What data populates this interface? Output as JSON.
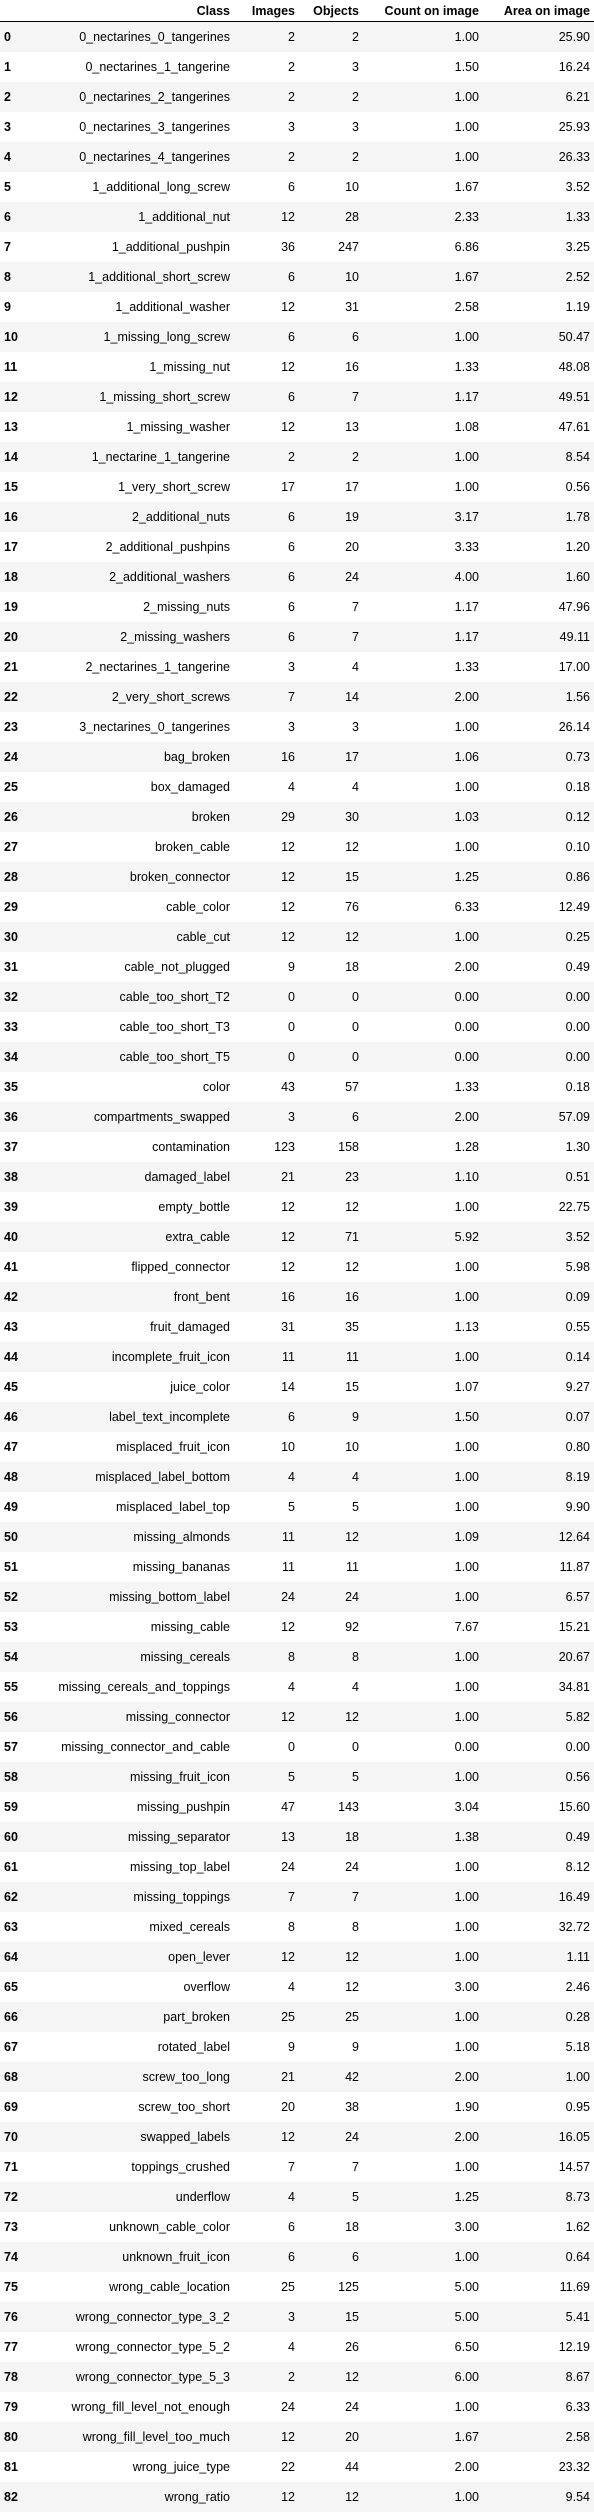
{
  "table": {
    "columns": [
      "",
      "Class",
      "Images",
      "Objects",
      "Count on image",
      "Area on image"
    ],
    "rows": [
      [
        "0",
        "0_nectarines_0_tangerines",
        "2",
        "2",
        "1.00",
        "25.90"
      ],
      [
        "1",
        "0_nectarines_1_tangerine",
        "2",
        "3",
        "1.50",
        "16.24"
      ],
      [
        "2",
        "0_nectarines_2_tangerines",
        "2",
        "2",
        "1.00",
        "6.21"
      ],
      [
        "3",
        "0_nectarines_3_tangerines",
        "3",
        "3",
        "1.00",
        "25.93"
      ],
      [
        "4",
        "0_nectarines_4_tangerines",
        "2",
        "2",
        "1.00",
        "26.33"
      ],
      [
        "5",
        "1_additional_long_screw",
        "6",
        "10",
        "1.67",
        "3.52"
      ],
      [
        "6",
        "1_additional_nut",
        "12",
        "28",
        "2.33",
        "1.33"
      ],
      [
        "7",
        "1_additional_pushpin",
        "36",
        "247",
        "6.86",
        "3.25"
      ],
      [
        "8",
        "1_additional_short_screw",
        "6",
        "10",
        "1.67",
        "2.52"
      ],
      [
        "9",
        "1_additional_washer",
        "12",
        "31",
        "2.58",
        "1.19"
      ],
      [
        "10",
        "1_missing_long_screw",
        "6",
        "6",
        "1.00",
        "50.47"
      ],
      [
        "11",
        "1_missing_nut",
        "12",
        "16",
        "1.33",
        "48.08"
      ],
      [
        "12",
        "1_missing_short_screw",
        "6",
        "7",
        "1.17",
        "49.51"
      ],
      [
        "13",
        "1_missing_washer",
        "12",
        "13",
        "1.08",
        "47.61"
      ],
      [
        "14",
        "1_nectarine_1_tangerine",
        "2",
        "2",
        "1.00",
        "8.54"
      ],
      [
        "15",
        "1_very_short_screw",
        "17",
        "17",
        "1.00",
        "0.56"
      ],
      [
        "16",
        "2_additional_nuts",
        "6",
        "19",
        "3.17",
        "1.78"
      ],
      [
        "17",
        "2_additional_pushpins",
        "6",
        "20",
        "3.33",
        "1.20"
      ],
      [
        "18",
        "2_additional_washers",
        "6",
        "24",
        "4.00",
        "1.60"
      ],
      [
        "19",
        "2_missing_nuts",
        "6",
        "7",
        "1.17",
        "47.96"
      ],
      [
        "20",
        "2_missing_washers",
        "6",
        "7",
        "1.17",
        "49.11"
      ],
      [
        "21",
        "2_nectarines_1_tangerine",
        "3",
        "4",
        "1.33",
        "17.00"
      ],
      [
        "22",
        "2_very_short_screws",
        "7",
        "14",
        "2.00",
        "1.56"
      ],
      [
        "23",
        "3_nectarines_0_tangerines",
        "3",
        "3",
        "1.00",
        "26.14"
      ],
      [
        "24",
        "bag_broken",
        "16",
        "17",
        "1.06",
        "0.73"
      ],
      [
        "25",
        "box_damaged",
        "4",
        "4",
        "1.00",
        "0.18"
      ],
      [
        "26",
        "broken",
        "29",
        "30",
        "1.03",
        "0.12"
      ],
      [
        "27",
        "broken_cable",
        "12",
        "12",
        "1.00",
        "0.10"
      ],
      [
        "28",
        "broken_connector",
        "12",
        "15",
        "1.25",
        "0.86"
      ],
      [
        "29",
        "cable_color",
        "12",
        "76",
        "6.33",
        "12.49"
      ],
      [
        "30",
        "cable_cut",
        "12",
        "12",
        "1.00",
        "0.25"
      ],
      [
        "31",
        "cable_not_plugged",
        "9",
        "18",
        "2.00",
        "0.49"
      ],
      [
        "32",
        "cable_too_short_T2",
        "0",
        "0",
        "0.00",
        "0.00"
      ],
      [
        "33",
        "cable_too_short_T3",
        "0",
        "0",
        "0.00",
        "0.00"
      ],
      [
        "34",
        "cable_too_short_T5",
        "0",
        "0",
        "0.00",
        "0.00"
      ],
      [
        "35",
        "color",
        "43",
        "57",
        "1.33",
        "0.18"
      ],
      [
        "36",
        "compartments_swapped",
        "3",
        "6",
        "2.00",
        "57.09"
      ],
      [
        "37",
        "contamination",
        "123",
        "158",
        "1.28",
        "1.30"
      ],
      [
        "38",
        "damaged_label",
        "21",
        "23",
        "1.10",
        "0.51"
      ],
      [
        "39",
        "empty_bottle",
        "12",
        "12",
        "1.00",
        "22.75"
      ],
      [
        "40",
        "extra_cable",
        "12",
        "71",
        "5.92",
        "3.52"
      ],
      [
        "41",
        "flipped_connector",
        "12",
        "12",
        "1.00",
        "5.98"
      ],
      [
        "42",
        "front_bent",
        "16",
        "16",
        "1.00",
        "0.09"
      ],
      [
        "43",
        "fruit_damaged",
        "31",
        "35",
        "1.13",
        "0.55"
      ],
      [
        "44",
        "incomplete_fruit_icon",
        "11",
        "11",
        "1.00",
        "0.14"
      ],
      [
        "45",
        "juice_color",
        "14",
        "15",
        "1.07",
        "9.27"
      ],
      [
        "46",
        "label_text_incomplete",
        "6",
        "9",
        "1.50",
        "0.07"
      ],
      [
        "47",
        "misplaced_fruit_icon",
        "10",
        "10",
        "1.00",
        "0.80"
      ],
      [
        "48",
        "misplaced_label_bottom",
        "4",
        "4",
        "1.00",
        "8.19"
      ],
      [
        "49",
        "misplaced_label_top",
        "5",
        "5",
        "1.00",
        "9.90"
      ],
      [
        "50",
        "missing_almonds",
        "11",
        "12",
        "1.09",
        "12.64"
      ],
      [
        "51",
        "missing_bananas",
        "11",
        "11",
        "1.00",
        "11.87"
      ],
      [
        "52",
        "missing_bottom_label",
        "24",
        "24",
        "1.00",
        "6.57"
      ],
      [
        "53",
        "missing_cable",
        "12",
        "92",
        "7.67",
        "15.21"
      ],
      [
        "54",
        "missing_cereals",
        "8",
        "8",
        "1.00",
        "20.67"
      ],
      [
        "55",
        "missing_cereals_and_toppings",
        "4",
        "4",
        "1.00",
        "34.81"
      ],
      [
        "56",
        "missing_connector",
        "12",
        "12",
        "1.00",
        "5.82"
      ],
      [
        "57",
        "missing_connector_and_cable",
        "0",
        "0",
        "0.00",
        "0.00"
      ],
      [
        "58",
        "missing_fruit_icon",
        "5",
        "5",
        "1.00",
        "0.56"
      ],
      [
        "59",
        "missing_pushpin",
        "47",
        "143",
        "3.04",
        "15.60"
      ],
      [
        "60",
        "missing_separator",
        "13",
        "18",
        "1.38",
        "0.49"
      ],
      [
        "61",
        "missing_top_label",
        "24",
        "24",
        "1.00",
        "8.12"
      ],
      [
        "62",
        "missing_toppings",
        "7",
        "7",
        "1.00",
        "16.49"
      ],
      [
        "63",
        "mixed_cereals",
        "8",
        "8",
        "1.00",
        "32.72"
      ],
      [
        "64",
        "open_lever",
        "12",
        "12",
        "1.00",
        "1.11"
      ],
      [
        "65",
        "overflow",
        "4",
        "12",
        "3.00",
        "2.46"
      ],
      [
        "66",
        "part_broken",
        "25",
        "25",
        "1.00",
        "0.28"
      ],
      [
        "67",
        "rotated_label",
        "9",
        "9",
        "1.00",
        "5.18"
      ],
      [
        "68",
        "screw_too_long",
        "21",
        "42",
        "2.00",
        "1.00"
      ],
      [
        "69",
        "screw_too_short",
        "20",
        "38",
        "1.90",
        "0.95"
      ],
      [
        "70",
        "swapped_labels",
        "12",
        "24",
        "2.00",
        "16.05"
      ],
      [
        "71",
        "toppings_crushed",
        "7",
        "7",
        "1.00",
        "14.57"
      ],
      [
        "72",
        "underflow",
        "4",
        "5",
        "1.25",
        "8.73"
      ],
      [
        "73",
        "unknown_cable_color",
        "6",
        "18",
        "3.00",
        "1.62"
      ],
      [
        "74",
        "unknown_fruit_icon",
        "6",
        "6",
        "1.00",
        "0.64"
      ],
      [
        "75",
        "wrong_cable_location",
        "25",
        "125",
        "5.00",
        "11.69"
      ],
      [
        "76",
        "wrong_connector_type_3_2",
        "3",
        "15",
        "5.00",
        "5.41"
      ],
      [
        "77",
        "wrong_connector_type_5_2",
        "4",
        "26",
        "6.50",
        "12.19"
      ],
      [
        "78",
        "wrong_connector_type_5_3",
        "2",
        "12",
        "6.00",
        "8.67"
      ],
      [
        "79",
        "wrong_fill_level_not_enough",
        "24",
        "24",
        "1.00",
        "6.33"
      ],
      [
        "80",
        "wrong_fill_level_too_much",
        "12",
        "20",
        "1.67",
        "2.58"
      ],
      [
        "81",
        "wrong_juice_type",
        "22",
        "44",
        "2.00",
        "23.32"
      ],
      [
        "82",
        "wrong_ratio",
        "12",
        "12",
        "1.00",
        "9.54"
      ]
    ]
  }
}
